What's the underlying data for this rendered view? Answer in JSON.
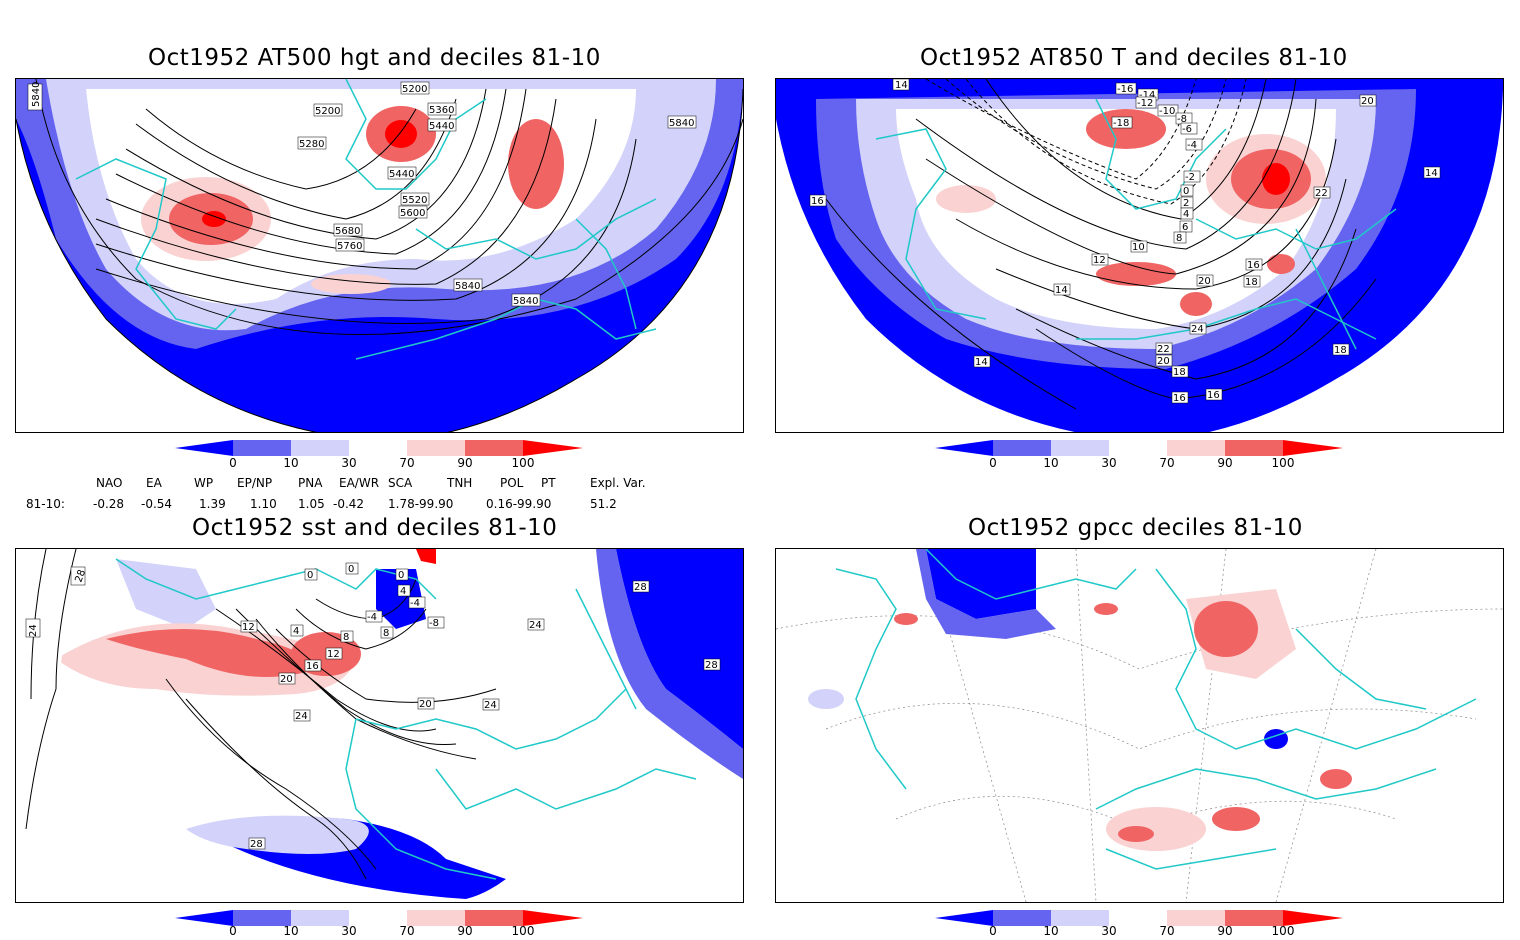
{
  "panels": [
    {
      "title": "Oct1952 AT500 hgt and deciles 81-10",
      "contour_labels": [
        "5840",
        "5200",
        "5200",
        "5360",
        "5440",
        "5280",
        "5440",
        "5520",
        "5600",
        "5680",
        "5760",
        "5840",
        "5840",
        "5840"
      ]
    },
    {
      "title": "Oct1952 AT850 T and deciles 81-10",
      "contour_labels": [
        "14",
        "-16",
        "-14",
        "-12",
        "-10",
        "-8",
        "-18",
        "-6",
        "-4",
        "-2",
        "0",
        "2",
        "4",
        "6",
        "8",
        "10",
        "12",
        "14",
        "16",
        "16",
        "18",
        "20",
        "20",
        "22",
        "22",
        "24",
        "16",
        "18",
        "14",
        "14",
        "16",
        "18",
        "20"
      ]
    },
    {
      "title": "Oct1952 sst and deciles 81-10",
      "contour_labels": [
        "28",
        "24",
        "0",
        "0",
        "0",
        "4",
        "-4",
        "12",
        "4",
        "8",
        "8",
        "12",
        "16",
        "20",
        "24",
        "-4",
        "-8",
        "20",
        "24",
        "24",
        "28",
        "28",
        "28"
      ]
    },
    {
      "title": "Oct1952 gpcc deciles 81-10",
      "contour_labels": []
    }
  ],
  "colorbar": {
    "labels": [
      "0",
      "10",
      "30",
      "70",
      "90",
      "100"
    ],
    "colors": {
      "deep_blue": "#0000ff",
      "mid_blue": "#6464f0",
      "light_blue": "#d2d2fa",
      "white": "#ffffff",
      "light_red": "#fad2d2",
      "mid_red": "#f06464",
      "deep_red": "#ff0000"
    }
  },
  "indices": {
    "headers": [
      "NAO",
      "EA",
      "WP",
      "EP/NP",
      "PNA",
      "EA/WR",
      "SCA",
      "TNH",
      "POL",
      "PT",
      "Expl. Var."
    ],
    "row_label": "81-10:",
    "values": [
      "-0.28",
      "-0.54",
      "1.39",
      "1.10",
      "1.05",
      "-0.42",
      "1.78-99.90",
      "0.16-99.90",
      "51.2"
    ]
  },
  "colors": {
    "coast": "#20c8c8",
    "contour": "#000000",
    "grid": "#888888"
  }
}
